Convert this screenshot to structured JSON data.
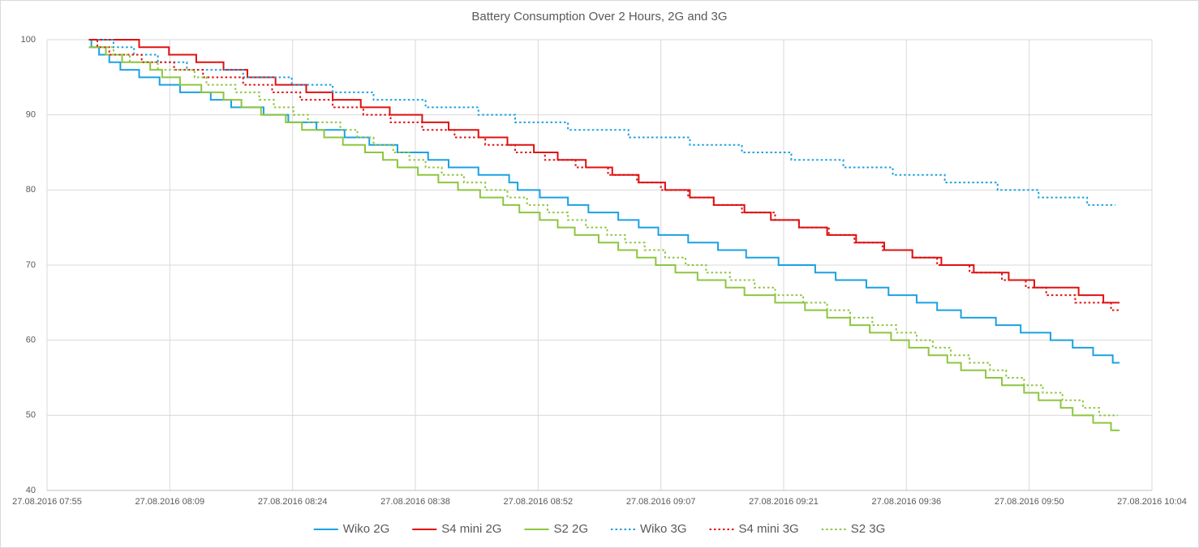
{
  "chart_data": {
    "type": "step-line",
    "title": "Battery Consumption Over 2 Hours, 2G and 3G",
    "xlim": [
      475.2,
      604.8
    ],
    "xticks": [
      {
        "value": 475.2,
        "label": "27.08.2016 07:55"
      },
      {
        "value": 489.6,
        "label": "27.08.2016 08:09"
      },
      {
        "value": 504,
        "label": "27.08.2016 08:24"
      },
      {
        "value": 518.4,
        "label": "27.08.2016 08:38"
      },
      {
        "value": 532.8,
        "label": "27.08.2016 08:52"
      },
      {
        "value": 547.2,
        "label": "27.08.2016 09:07"
      },
      {
        "value": 561.6,
        "label": "27.08.2016 09:21"
      },
      {
        "value": 576,
        "label": "27.08.2016 09:36"
      },
      {
        "value": 590.4,
        "label": "27.08.2016 09:50"
      },
      {
        "value": 604.8,
        "label": "27.08.2016 10:04"
      }
    ],
    "ylim": [
      40,
      100
    ],
    "yticks": [
      40,
      50,
      60,
      70,
      80,
      90,
      100
    ],
    "grid": true,
    "legend": "bottom",
    "series": [
      {
        "name": "Wiko 2G",
        "color": "#1ba1e2",
        "line_style": "solid",
        "x": [
          480.1,
          480.4,
          481.3,
          482.5,
          483.8,
          486.0,
          488.4,
          490.8,
          494.4,
          496.8,
          500.6,
          503.5,
          506.8,
          510.1,
          513.0,
          516.3,
          519.9,
          522.3,
          525.8,
          529.4,
          530.4,
          533.0,
          536.3,
          538.7,
          542.2,
          544.6,
          546.9,
          550.4,
          553.9,
          557.2,
          561.0,
          565.3,
          567.7,
          571.3,
          573.9,
          577.2,
          579.6,
          582.4,
          586.5,
          589.4,
          592.9,
          595.5,
          597.9,
          600.2,
          601.0
        ],
        "values": [
          100,
          99,
          98,
          97,
          96,
          95,
          94,
          93,
          92,
          91,
          90,
          89,
          88,
          87,
          86,
          85,
          84,
          83,
          82,
          81,
          80,
          79,
          78,
          77,
          76,
          75,
          74,
          73,
          72,
          71,
          70,
          69,
          68,
          67,
          66,
          65,
          64,
          63,
          62,
          61,
          60,
          59,
          58,
          57,
          57
        ]
      },
      {
        "name": "S4 mini 2G",
        "color": "#e01010",
        "line_style": "solid",
        "x": [
          480.1,
          486.0,
          489.5,
          492.7,
          495.9,
          498.7,
          502.0,
          505.6,
          508.7,
          512.0,
          515.4,
          519.2,
          522.3,
          525.8,
          529.2,
          532.3,
          535.1,
          538.4,
          541.5,
          544.6,
          547.7,
          550.6,
          553.4,
          557.0,
          560.1,
          563.4,
          566.7,
          570.1,
          573.4,
          576.7,
          580.1,
          583.9,
          588.0,
          591.0,
          596.2,
          599.1,
          601.0
        ],
        "values": [
          100,
          99,
          98,
          97,
          96,
          95,
          94,
          93,
          92,
          91,
          90,
          89,
          88,
          87,
          86,
          85,
          84,
          83,
          82,
          81,
          80,
          79,
          78,
          77,
          76,
          75,
          74,
          73,
          72,
          71,
          70,
          69,
          68,
          67,
          66,
          65,
          65
        ]
      },
      {
        "name": "S2 2G",
        "color": "#8dc63f",
        "line_style": "solid",
        "x": [
          480.1,
          482.1,
          484.0,
          487.3,
          488.7,
          490.8,
          493.3,
          495.9,
          498.0,
          500.3,
          503.2,
          505.1,
          507.7,
          509.9,
          512.5,
          514.6,
          516.3,
          518.7,
          521.1,
          523.4,
          526.0,
          528.7,
          530.6,
          533.0,
          535.1,
          537.1,
          539.9,
          542.2,
          544.4,
          546.6,
          548.9,
          551.5,
          554.8,
          557.0,
          560.6,
          564.1,
          566.7,
          569.4,
          571.7,
          574.2,
          576.3,
          578.6,
          580.8,
          582.4,
          585.3,
          587.2,
          589.8,
          591.5,
          594.1,
          595.5,
          597.9,
          600.0,
          601.0
        ],
        "values": [
          99,
          98,
          97,
          96,
          95,
          94,
          93,
          92,
          91,
          90,
          89,
          88,
          87,
          86,
          85,
          84,
          83,
          82,
          81,
          80,
          79,
          78,
          77,
          76,
          75,
          74,
          73,
          72,
          71,
          70,
          69,
          68,
          67,
          66,
          65,
          64,
          63,
          62,
          61,
          60,
          59,
          58,
          57,
          56,
          55,
          54,
          53,
          52,
          51,
          50,
          49,
          48,
          48
        ]
      },
      {
        "name": "Wiko 3G",
        "color": "#1ba1e2",
        "line_style": "dotted",
        "x": [
          480.1,
          483.0,
          485.4,
          488.2,
          491.6,
          498.2,
          503.9,
          508.7,
          513.5,
          519.6,
          525.8,
          530.1,
          536.3,
          543.4,
          550.6,
          556.7,
          562.5,
          568.6,
          574.4,
          580.5,
          586.7,
          591.5,
          597.2,
          600.5
        ],
        "values": [
          100,
          99,
          98,
          97,
          96,
          95,
          94,
          93,
          92,
          91,
          90,
          89,
          88,
          87,
          86,
          85,
          84,
          83,
          82,
          81,
          80,
          79,
          78,
          78
        ]
      },
      {
        "name": "S4 mini 3G",
        "color": "#e01010",
        "line_style": "dotted",
        "x": [
          480.1,
          481.1,
          482.5,
          486.3,
          490.1,
          493.5,
          498.2,
          501.6,
          504.9,
          508.7,
          512.3,
          515.5,
          519.2,
          523.0,
          526.6,
          530.1,
          533.6,
          537.2,
          541.0,
          544.4,
          547.2,
          550.4,
          553.4,
          556.7,
          560.6,
          563.4,
          566.9,
          569.9,
          573.2,
          576.7,
          579.6,
          583.4,
          587.2,
          590.0,
          592.4,
          595.8,
          600.0,
          601.0
        ],
        "values": [
          100,
          99,
          98,
          97,
          96,
          95,
          94,
          93,
          92,
          91,
          90,
          89,
          88,
          87,
          86,
          85,
          84,
          83,
          82,
          81,
          80,
          79,
          78,
          77,
          76,
          75,
          74,
          73,
          72,
          71,
          70,
          69,
          68,
          67,
          66,
          65,
          64,
          64
        ]
      },
      {
        "name": "S2 3G",
        "color": "#8dc63f",
        "line_style": "dotted",
        "x": [
          480.1,
          483.0,
          484.9,
          488.2,
          492.5,
          493.9,
          497.3,
          500.1,
          501.8,
          504.1,
          505.8,
          509.6,
          511.6,
          513.5,
          515.8,
          517.7,
          519.6,
          521.5,
          524.1,
          526.6,
          529.2,
          531.5,
          533.9,
          536.3,
          538.4,
          540.9,
          543.0,
          545.3,
          547.7,
          550.1,
          552.5,
          555.3,
          558.2,
          560.6,
          563.9,
          566.7,
          569.4,
          572.0,
          574.8,
          577.2,
          579.1,
          581.2,
          583.4,
          585.8,
          587.7,
          589.8,
          592.0,
          594.3,
          596.7,
          598.6,
          600.8
        ],
        "values": [
          99,
          98,
          97,
          96,
          95,
          94,
          93,
          92,
          91,
          90,
          89,
          88,
          87,
          86,
          85,
          84,
          83,
          82,
          81,
          80,
          79,
          78,
          77,
          76,
          75,
          74,
          73,
          72,
          71,
          70,
          69,
          68,
          67,
          66,
          65,
          64,
          63,
          62,
          61,
          60,
          59,
          58,
          57,
          56,
          55,
          54,
          53,
          52,
          51,
          50,
          50
        ]
      }
    ]
  }
}
